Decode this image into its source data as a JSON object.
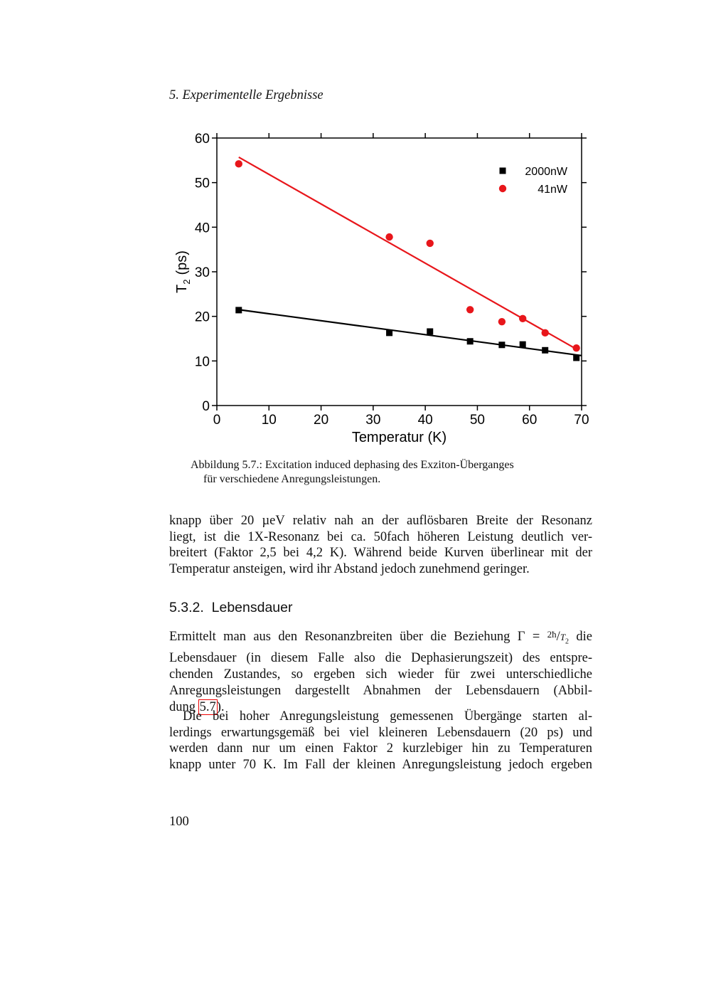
{
  "header": "5. Experimentelle Ergebnisse",
  "chart_data": {
    "type": "scatter",
    "xlabel": "Temperatur (K)",
    "ylabel": "T",
    "ylabel_sub": "2",
    "ylabel_unit": "(ps)",
    "xlim": [
      0,
      70
    ],
    "xticks": [
      0,
      10,
      20,
      30,
      40,
      50,
      60,
      70
    ],
    "ylim": [
      0,
      60
    ],
    "yticks": [
      0,
      10,
      20,
      30,
      40,
      50,
      60
    ],
    "legend": "upper right",
    "series": [
      {
        "name": "2000nW",
        "color": "#000000",
        "marker": "square",
        "x": [
          4.2,
          33.1,
          40.9,
          48.6,
          54.7,
          58.7,
          63.0,
          69.0
        ],
        "values": [
          21.4,
          16.3,
          16.6,
          14.4,
          13.6,
          13.7,
          12.4,
          10.7
        ]
      },
      {
        "name": "41nW",
        "color": "#e8161b",
        "marker": "circle",
        "x": [
          4.2,
          33.1,
          40.9,
          48.6,
          54.7,
          58.7,
          63.0,
          69.0
        ],
        "values": [
          54.2,
          37.8,
          36.4,
          21.5,
          18.8,
          19.5,
          16.3,
          12.9
        ]
      }
    ],
    "fit_lines": [
      {
        "color": "#000000",
        "x": [
          4.2,
          70
        ],
        "values": [
          21.5,
          11.2
        ]
      },
      {
        "color": "#e8161b",
        "x": [
          4.2,
          69.1
        ],
        "values": [
          55.7,
          12.6
        ]
      }
    ]
  },
  "caption": {
    "label": "Abbildung 5.7.:",
    "lines": [
      "Excitation induced dephasing des Exziton-Überganges",
      "für verschiedene Anregungsleistungen."
    ]
  },
  "paragraph_1": [
    "knapp über 20 µeV relativ nah an der auflösbaren Breite der Resonanz",
    "liegt, ist die 1X-Resonanz bei ca. 50fach höheren Leistung deutlich ver-",
    "breitert (Faktor 2,5 bei 4,2 K). Während beide Kurven überlinear mit der",
    "Temperatur ansteigen, wird ihr Abstand jedoch zunehmend geringer."
  ],
  "section": {
    "number": "5.3.2.",
    "title": "Lebensdauer"
  },
  "paragraph_2": {
    "first_line": {
      "text": "Ermittelt man aus den Resonanzbreiten über die Beziehung Γ =",
      "num": "2ħ",
      "slash": "/",
      "den": "T",
      "sub": "2",
      "after": "die"
    },
    "lines": [
      "Lebensdauer (in diesem Falle also die Dephasierungszeit) des entspre-",
      "chenden Zustandes, so ergeben sich wieder für zwei unterschiedliche",
      "Anregungsleistungen dargestellt Abnahmen der Lebensdauern (Abbil-"
    ],
    "last_line": {
      "text": "dung",
      "ref": "5.7",
      "after": ")."
    }
  },
  "paragraph_3": [
    "Die bei hoher Anregungsleistung gemessenen Übergänge starten al-",
    "lerdings erwartungsgemäß bei viel kleineren Lebensdauern (20 ps) und",
    "werden dann nur um einen Faktor 2 kurzlebiger hin zu Temperaturen",
    "knapp unter 70 K. Im Fall der kleinen Anregungsleistung jedoch ergeben"
  ],
  "page_number": "100"
}
